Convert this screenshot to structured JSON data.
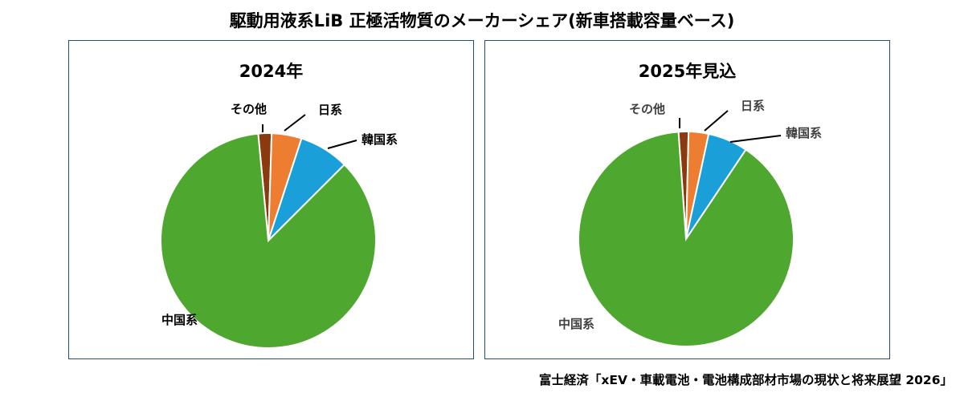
{
  "title": "駆動用液系LiB 正極活物質のメーカーシェア(新車搭載容量ベース)",
  "source": "富士経済「xEV・車載電池・電池構成部材市場の現状と将来展望 2026」",
  "colors": {
    "日系": "#ed7d31",
    "韓国系": "#1a9fd8",
    "中国系": "#4ea72e",
    "その他": "#8b3a0f",
    "frame": "#1f4e79"
  },
  "chart_data": [
    {
      "type": "pie",
      "title": "2024年",
      "categories": [
        "日系",
        "韓国系",
        "中国系",
        "その他"
      ],
      "values": [
        4.5,
        7.5,
        86.0,
        2.0
      ],
      "label_color": "#000000"
    },
    {
      "type": "pie",
      "title": "2025年見込",
      "categories": [
        "日系",
        "韓国系",
        "中国系",
        "その他"
      ],
      "values": [
        3.0,
        6.0,
        89.5,
        1.5
      ],
      "label_color": "#404040"
    }
  ]
}
